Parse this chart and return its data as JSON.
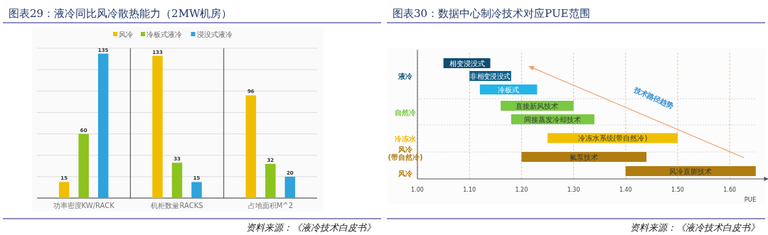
{
  "chart_data": [
    {
      "type": "bar",
      "title": "图表29：液冷同比风冷散热能力（2MW机房）",
      "categories": [
        "功率密度KW/RACK",
        "机柜数量RACKS",
        "占地面积M^2"
      ],
      "series": [
        {
          "name": "风冷",
          "color": "#f0be00",
          "values": [
            15,
            133,
            96
          ]
        },
        {
          "name": "冷板式液冷",
          "color": "#8cc31e",
          "values": [
            60,
            33,
            32
          ]
        },
        {
          "name": "浸没式液冷",
          "color": "#2ea3dc",
          "values": [
            135,
            15,
            20
          ]
        }
      ],
      "ylim": [
        0,
        140
      ],
      "yticks": [
        {
          "value": 0,
          "label": null
        },
        {
          "value": 20,
          "label": null
        },
        {
          "value": 40,
          "label": null
        },
        {
          "value": 60,
          "label": null
        },
        {
          "value": 80,
          "label": null
        },
        {
          "value": 100,
          "label": null
        },
        {
          "value": 120,
          "label": null
        },
        {
          "value": 140,
          "label": null
        }
      ],
      "tick_labels": "x",
      "grid": "y",
      "legend": "top",
      "data_labels": true,
      "annotations": [
        "资料来源：《液冷技术白皮书》"
      ]
    },
    {
      "type": "bar",
      "orientation": "horizontal",
      "title": "图表30：数据中心制冷技术对应PUE范围",
      "xlabel": "PUE",
      "categories": [
        "相变浸没式",
        "非相变浸没式",
        "冷板式",
        "直接新风技术",
        "间接蒸发冷却技术",
        "冷冻水系统(带自然冷)",
        "氟泵技术",
        "风冷直膨技术"
      ],
      "base": [
        1.05,
        1.1,
        1.12,
        1.16,
        1.18,
        1.25,
        1.2,
        1.4
      ],
      "values": [
        0.09,
        0.08,
        0.11,
        0.14,
        0.16,
        0.25,
        0.24,
        0.25
      ],
      "colors": [
        "#0e4d72",
        "#0e5f8a",
        "#22b5e8",
        "#79c843",
        "#79c843",
        "#f0c000",
        "#b07d10",
        "#b07d10"
      ],
      "xlim": [
        1.0,
        1.67
      ],
      "xticks": [
        {
          "value": 1.0,
          "label": "1.00"
        },
        {
          "value": 1.1,
          "label": "1.10"
        },
        {
          "value": 1.2,
          "label": "1.20"
        },
        {
          "value": 1.3,
          "label": "1.30"
        },
        {
          "value": 1.4,
          "label": "1.40"
        },
        {
          "value": 1.5,
          "label": "1.50"
        },
        {
          "value": 1.6,
          "label": "1.60"
        }
      ],
      "grid": "x",
      "annotations": [
        "液冷",
        "自然冷",
        "冷冻水",
        "风冷(带自然冷)",
        "风冷",
        "技术路径趋势",
        "资料来源：《液冷技术白皮书》"
      ]
    }
  ]
}
